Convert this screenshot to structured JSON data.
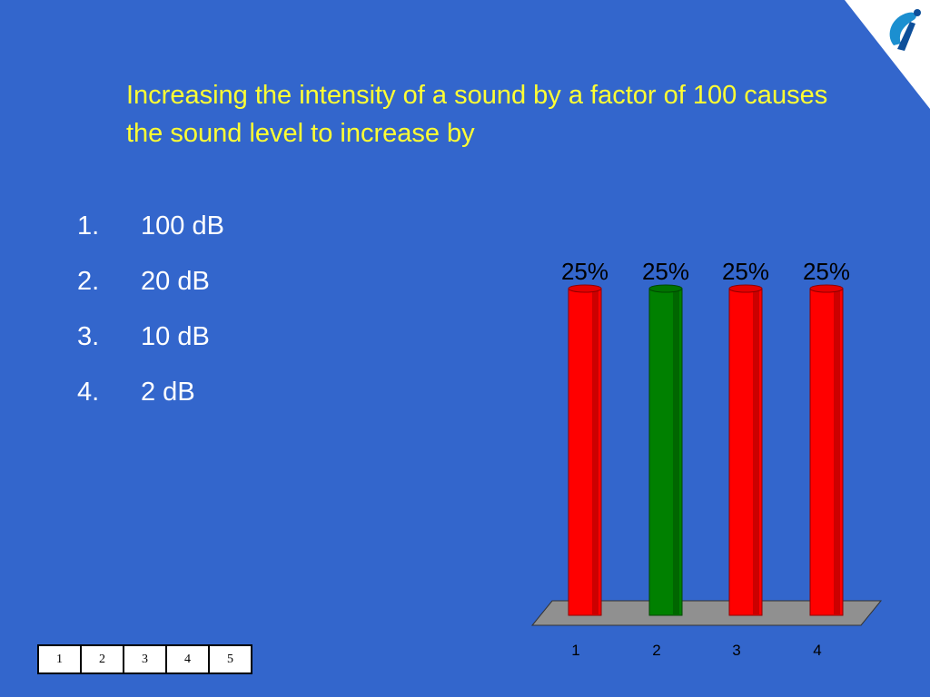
{
  "slide": {
    "question": "Increasing the intensity of a sound by a factor of 100 causes the sound level to increase by",
    "answers": [
      {
        "num": "1.",
        "text": "100 dB"
      },
      {
        "num": "2.",
        "text": "20 dB"
      },
      {
        "num": "3.",
        "text": "10 dB"
      },
      {
        "num": "4.",
        "text": "2 dB"
      }
    ]
  },
  "chart_data": {
    "type": "bar",
    "categories": [
      "1",
      "2",
      "3",
      "4"
    ],
    "values": [
      25,
      25,
      25,
      25
    ],
    "data_labels": [
      "25%",
      "25%",
      "25%",
      "25%"
    ],
    "bar_colors": [
      "#ff0000",
      "#008000",
      "#ff0000",
      "#ff0000"
    ],
    "ylim": [
      0,
      25
    ],
    "title": "",
    "xlabel": "",
    "ylabel": ""
  },
  "nav": {
    "buttons": [
      "1",
      "2",
      "3",
      "4",
      "5"
    ]
  },
  "colors": {
    "background": "#3366cc",
    "question_text": "#ffff33",
    "answer_text": "#ffffff"
  },
  "icons": {
    "logo": "turning-point-logo-icon"
  }
}
